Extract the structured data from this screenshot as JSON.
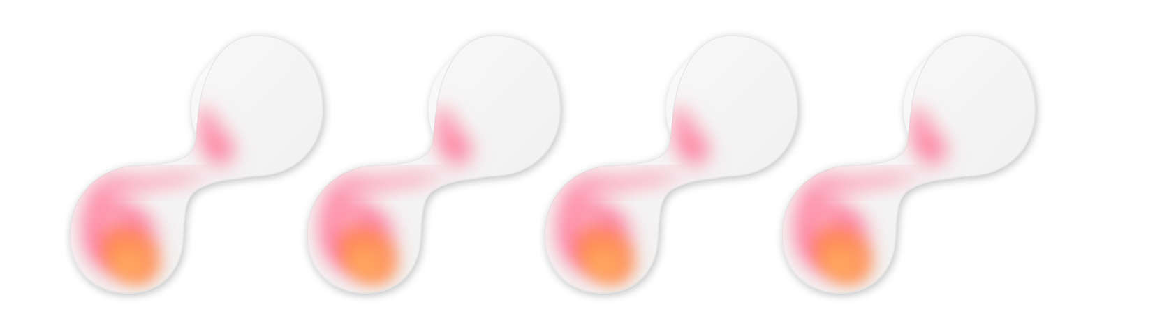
{
  "scene": {
    "background_color": "#ffffff",
    "description_icon": "hourglass-blob-icon",
    "repeat_count": 4,
    "colors": {
      "body_light": "#f3f3f3",
      "body_shadow": "#d9d9d9",
      "pink": "#ff5f86",
      "pink_light": "#ff9fb5",
      "orange": "#ff8a4a",
      "orange_light": "#ffb05c"
    }
  }
}
